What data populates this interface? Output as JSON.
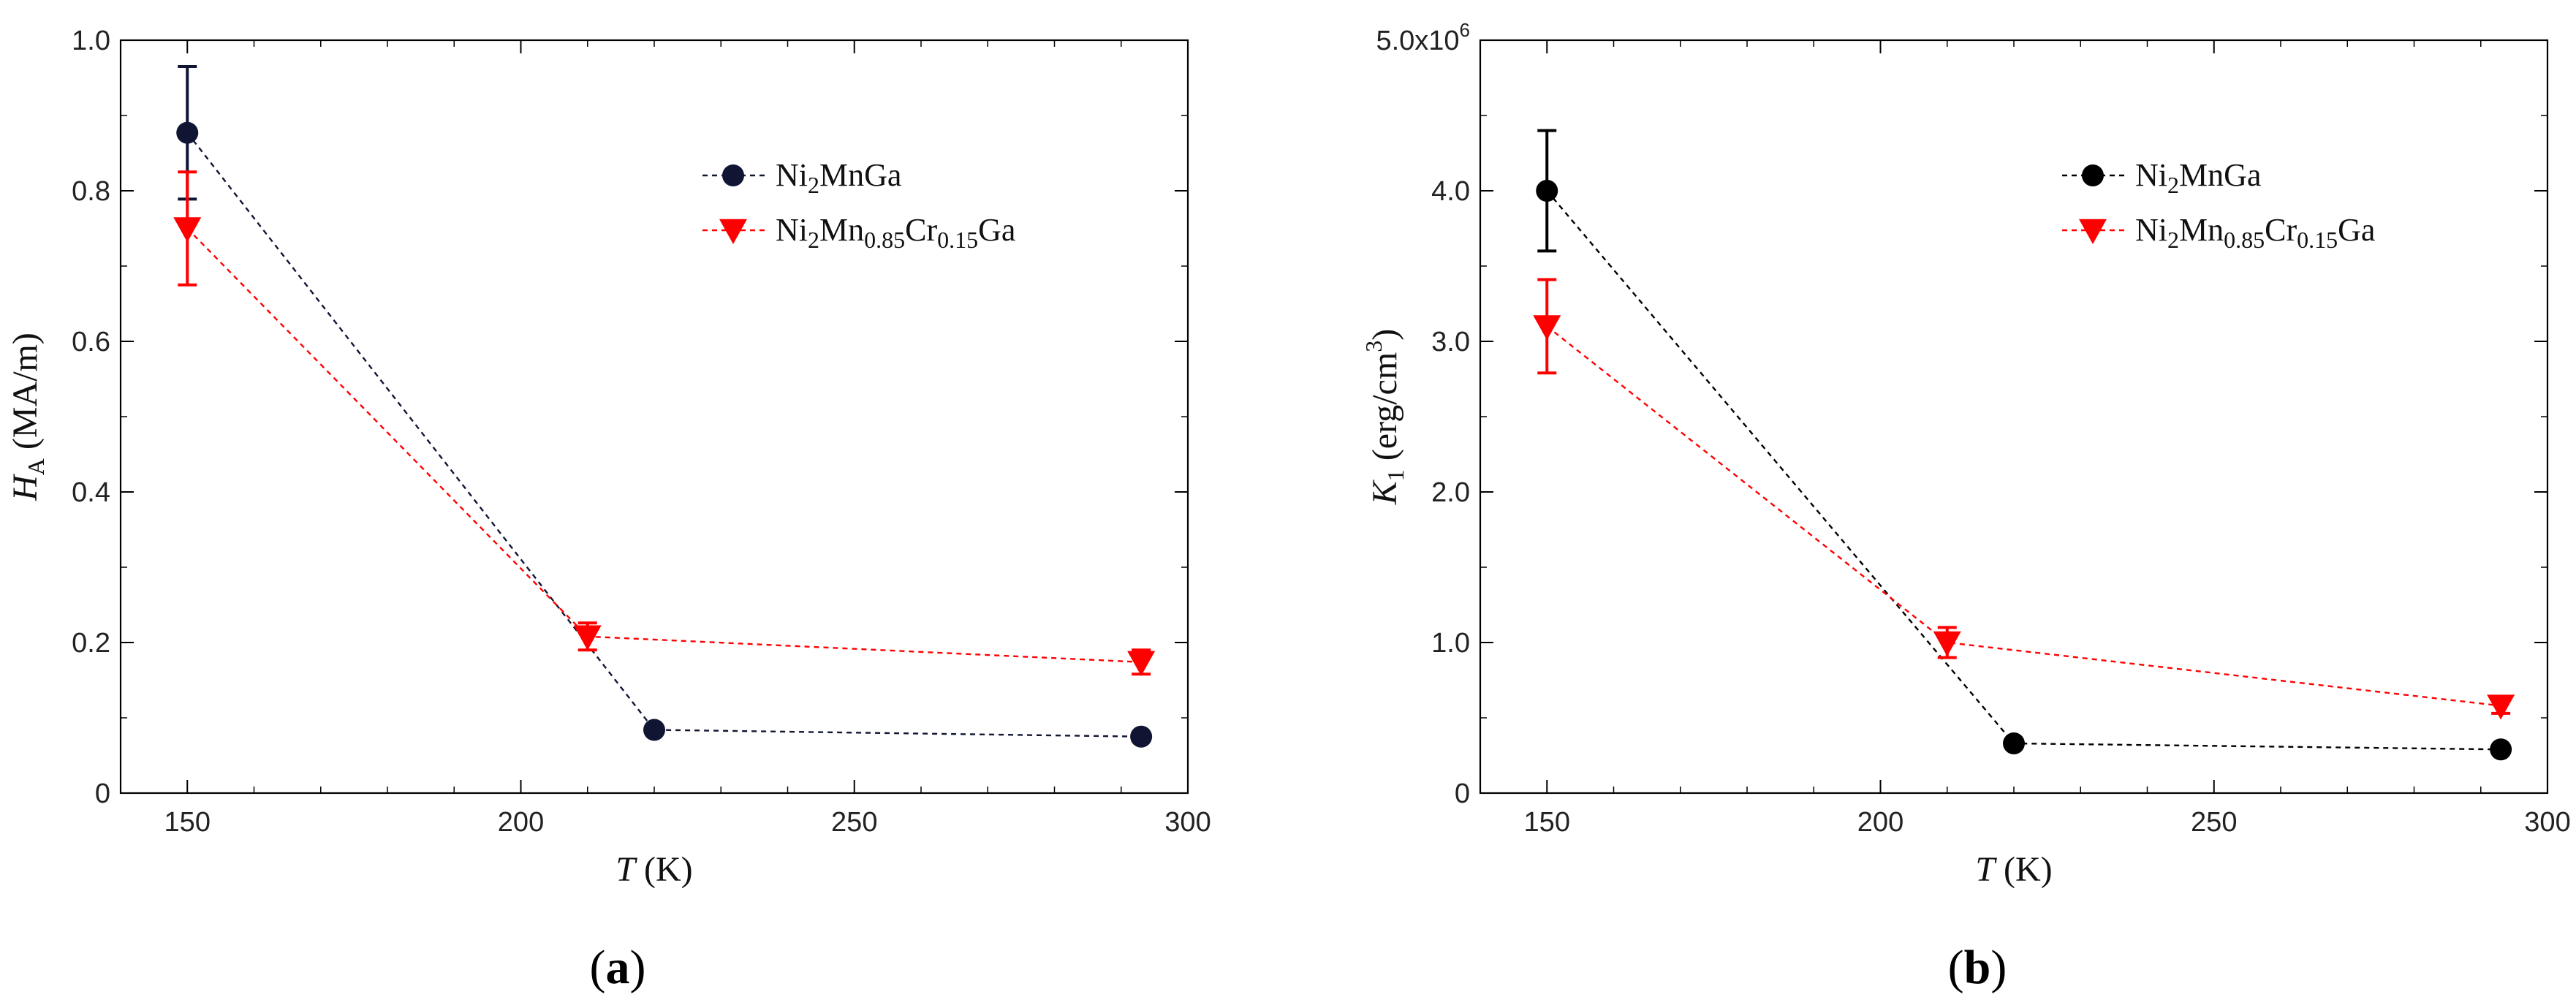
{
  "chart_data": [
    {
      "panel": "a",
      "panel_label_open": "(",
      "panel_label_letter": "a",
      "panel_label_close": ")",
      "type": "line",
      "xlabel_var": "T",
      "xlabel_unit": "(K)",
      "ylabel_var": "H",
      "ylabel_sub": "A",
      "ylabel_unit": "(MA/m)",
      "xlim": [
        140,
        300
      ],
      "ylim": [
        0,
        1.0
      ],
      "xticks": [
        150,
        200,
        250,
        300
      ],
      "yticks": [
        0,
        0.2,
        0.4,
        0.6,
        0.8,
        1.0
      ],
      "ytick_labels": [
        "0",
        "0.2",
        "0.4",
        "0.6",
        "0.8",
        "1.0"
      ],
      "series": [
        {
          "name_parts": [
            [
              "Ni",
              ""
            ],
            [
              "2",
              "sub"
            ],
            [
              "MnGa",
              ""
            ]
          ],
          "marker": "circle",
          "color": "#101533",
          "x": [
            150,
            220,
            293
          ],
          "y": [
            0.877,
            0.084,
            0.075
          ],
          "err": [
            0.088,
            0,
            0
          ]
        },
        {
          "name_parts": [
            [
              "Ni",
              ""
            ],
            [
              "2",
              "sub"
            ],
            [
              "Mn",
              ""
            ],
            [
              "0.85",
              "sub"
            ],
            [
              "Cr",
              ""
            ],
            [
              "0.15",
              "sub"
            ],
            [
              "Ga",
              ""
            ]
          ],
          "marker": "triangle-down",
          "color": "#ff0000",
          "x": [
            150,
            210,
            293
          ],
          "y": [
            0.75,
            0.208,
            0.174
          ],
          "err": [
            0.075,
            0.018,
            0.016
          ]
        }
      ]
    },
    {
      "panel": "b",
      "panel_label_open": "(",
      "panel_label_letter": "b",
      "panel_label_close": ")",
      "type": "line",
      "xlabel_var": "T",
      "xlabel_unit": "(K)",
      "ylabel_var": "K",
      "ylabel_sub": "1",
      "ylabel_unit": "(erg/cm",
      "ylabel_sup": "3",
      "ylabel_close": ")",
      "xlim": [
        140,
        300
      ],
      "ylim": [
        0,
        5000000
      ],
      "xticks": [
        150,
        200,
        250,
        300
      ],
      "yticks": [
        0,
        1000000,
        2000000,
        3000000,
        4000000,
        5000000
      ],
      "ytick_labels": [
        "0",
        "1.0",
        "2.0",
        "3.0",
        "4.0",
        "5.0x10"
      ],
      "ytick_top_exponent": "6",
      "series": [
        {
          "name_parts": [
            [
              "Ni",
              ""
            ],
            [
              "2",
              "sub"
            ],
            [
              "MnGa",
              ""
            ]
          ],
          "marker": "circle",
          "color": "#000000",
          "x": [
            150,
            220,
            293
          ],
          "y": [
            4000000,
            330000,
            290000
          ],
          "err": [
            400000,
            0,
            0
          ]
        },
        {
          "name_parts": [
            [
              "Ni",
              ""
            ],
            [
              "2",
              "sub"
            ],
            [
              "Mn",
              ""
            ],
            [
              "0.85",
              "sub"
            ],
            [
              "Cr",
              ""
            ],
            [
              "0.15",
              "sub"
            ],
            [
              "Ga",
              ""
            ]
          ],
          "marker": "triangle-down",
          "color": "#ff0000",
          "x": [
            150,
            210,
            293
          ],
          "y": [
            3100000,
            1000000,
            580000
          ],
          "err": [
            310000,
            100000,
            50000
          ]
        }
      ]
    }
  ]
}
